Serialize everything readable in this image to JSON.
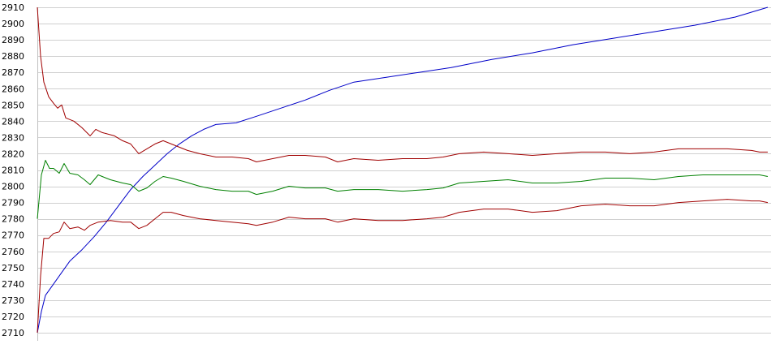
{
  "chart_data": {
    "type": "line",
    "title": "",
    "xlabel": "",
    "ylabel": "",
    "ylim": [
      2710,
      2910
    ],
    "xlim": [
      0,
      900
    ],
    "grid": true,
    "y_ticks": [
      2710,
      2720,
      2730,
      2740,
      2750,
      2760,
      2770,
      2780,
      2790,
      2800,
      2810,
      2820,
      2830,
      2840,
      2850,
      2860,
      2870,
      2880,
      2890,
      2900,
      2910
    ],
    "series": [
      {
        "color": "#0000c8",
        "points": [
          [
            0,
            2710
          ],
          [
            5,
            2723
          ],
          [
            10,
            2733
          ],
          [
            20,
            2740
          ],
          [
            30,
            2747
          ],
          [
            40,
            2754
          ],
          [
            55,
            2761
          ],
          [
            70,
            2769
          ],
          [
            85,
            2778
          ],
          [
            100,
            2788
          ],
          [
            115,
            2798
          ],
          [
            130,
            2806
          ],
          [
            145,
            2813
          ],
          [
            160,
            2820
          ],
          [
            175,
            2826
          ],
          [
            190,
            2831
          ],
          [
            205,
            2835
          ],
          [
            220,
            2838
          ],
          [
            245,
            2839
          ],
          [
            270,
            2843
          ],
          [
            300,
            2848
          ],
          [
            330,
            2853
          ],
          [
            360,
            2859
          ],
          [
            390,
            2864
          ],
          [
            430,
            2867
          ],
          [
            470,
            2870
          ],
          [
            510,
            2873
          ],
          [
            560,
            2878
          ],
          [
            610,
            2882
          ],
          [
            660,
            2887
          ],
          [
            710,
            2891
          ],
          [
            760,
            2895
          ],
          [
            810,
            2899
          ],
          [
            860,
            2904
          ],
          [
            900,
            2910
          ]
        ]
      },
      {
        "color": "#008000",
        "points": [
          [
            0,
            2780
          ],
          [
            5,
            2807
          ],
          [
            10,
            2816
          ],
          [
            15,
            2811
          ],
          [
            20,
            2811
          ],
          [
            27,
            2808
          ],
          [
            33,
            2814
          ],
          [
            40,
            2808
          ],
          [
            50,
            2807
          ],
          [
            58,
            2804
          ],
          [
            65,
            2801
          ],
          [
            75,
            2807
          ],
          [
            90,
            2804
          ],
          [
            105,
            2802
          ],
          [
            115,
            2801
          ],
          [
            125,
            2797
          ],
          [
            135,
            2799
          ],
          [
            145,
            2803
          ],
          [
            155,
            2806
          ],
          [
            165,
            2805
          ],
          [
            180,
            2803
          ],
          [
            200,
            2800
          ],
          [
            220,
            2798
          ],
          [
            240,
            2797
          ],
          [
            260,
            2797
          ],
          [
            270,
            2795
          ],
          [
            290,
            2797
          ],
          [
            310,
            2800
          ],
          [
            330,
            2799
          ],
          [
            355,
            2799
          ],
          [
            370,
            2797
          ],
          [
            390,
            2798
          ],
          [
            420,
            2798
          ],
          [
            450,
            2797
          ],
          [
            480,
            2798
          ],
          [
            500,
            2799
          ],
          [
            520,
            2802
          ],
          [
            550,
            2803
          ],
          [
            580,
            2804
          ],
          [
            610,
            2802
          ],
          [
            640,
            2802
          ],
          [
            670,
            2803
          ],
          [
            700,
            2805
          ],
          [
            730,
            2805
          ],
          [
            760,
            2804
          ],
          [
            790,
            2806
          ],
          [
            820,
            2807
          ],
          [
            850,
            2807
          ],
          [
            880,
            2807
          ],
          [
            890,
            2807
          ],
          [
            900,
            2806
          ]
        ]
      },
      {
        "color": "#a00000",
        "points": [
          [
            0,
            2910
          ],
          [
            4,
            2880
          ],
          [
            8,
            2864
          ],
          [
            14,
            2855
          ],
          [
            20,
            2851
          ],
          [
            25,
            2848
          ],
          [
            30,
            2850
          ],
          [
            35,
            2842
          ],
          [
            45,
            2840
          ],
          [
            55,
            2836
          ],
          [
            65,
            2831
          ],
          [
            72,
            2835
          ],
          [
            80,
            2833
          ],
          [
            95,
            2831
          ],
          [
            105,
            2828
          ],
          [
            115,
            2826
          ],
          [
            125,
            2820
          ],
          [
            135,
            2823
          ],
          [
            145,
            2826
          ],
          [
            155,
            2828
          ],
          [
            165,
            2826
          ],
          [
            175,
            2824
          ],
          [
            185,
            2822
          ],
          [
            200,
            2820
          ],
          [
            220,
            2818
          ],
          [
            240,
            2818
          ],
          [
            260,
            2817
          ],
          [
            270,
            2815
          ],
          [
            290,
            2817
          ],
          [
            310,
            2819
          ],
          [
            330,
            2819
          ],
          [
            355,
            2818
          ],
          [
            370,
            2815
          ],
          [
            390,
            2817
          ],
          [
            420,
            2816
          ],
          [
            450,
            2817
          ],
          [
            480,
            2817
          ],
          [
            500,
            2818
          ],
          [
            520,
            2820
          ],
          [
            550,
            2821
          ],
          [
            580,
            2820
          ],
          [
            610,
            2819
          ],
          [
            640,
            2820
          ],
          [
            670,
            2821
          ],
          [
            700,
            2821
          ],
          [
            730,
            2820
          ],
          [
            760,
            2821
          ],
          [
            790,
            2823
          ],
          [
            820,
            2823
          ],
          [
            850,
            2823
          ],
          [
            880,
            2822
          ],
          [
            890,
            2821
          ],
          [
            900,
            2821
          ]
        ]
      },
      {
        "color": "#a00000",
        "points": [
          [
            0,
            2710
          ],
          [
            4,
            2745
          ],
          [
            8,
            2768
          ],
          [
            14,
            2768
          ],
          [
            20,
            2771
          ],
          [
            27,
            2772
          ],
          [
            33,
            2778
          ],
          [
            40,
            2774
          ],
          [
            50,
            2775
          ],
          [
            58,
            2773
          ],
          [
            65,
            2776
          ],
          [
            75,
            2778
          ],
          [
            90,
            2779
          ],
          [
            105,
            2778
          ],
          [
            115,
            2778
          ],
          [
            125,
            2774
          ],
          [
            135,
            2776
          ],
          [
            145,
            2780
          ],
          [
            155,
            2784
          ],
          [
            165,
            2784
          ],
          [
            180,
            2782
          ],
          [
            200,
            2780
          ],
          [
            220,
            2779
          ],
          [
            240,
            2778
          ],
          [
            260,
            2777
          ],
          [
            270,
            2776
          ],
          [
            290,
            2778
          ],
          [
            310,
            2781
          ],
          [
            330,
            2780
          ],
          [
            355,
            2780
          ],
          [
            370,
            2778
          ],
          [
            390,
            2780
          ],
          [
            420,
            2779
          ],
          [
            450,
            2779
          ],
          [
            480,
            2780
          ],
          [
            500,
            2781
          ],
          [
            520,
            2784
          ],
          [
            550,
            2786
          ],
          [
            580,
            2786
          ],
          [
            610,
            2784
          ],
          [
            640,
            2785
          ],
          [
            670,
            2788
          ],
          [
            700,
            2789
          ],
          [
            730,
            2788
          ],
          [
            760,
            2788
          ],
          [
            790,
            2790
          ],
          [
            820,
            2791
          ],
          [
            850,
            2792
          ],
          [
            880,
            2791
          ],
          [
            890,
            2791
          ],
          [
            900,
            2790
          ]
        ]
      }
    ]
  }
}
